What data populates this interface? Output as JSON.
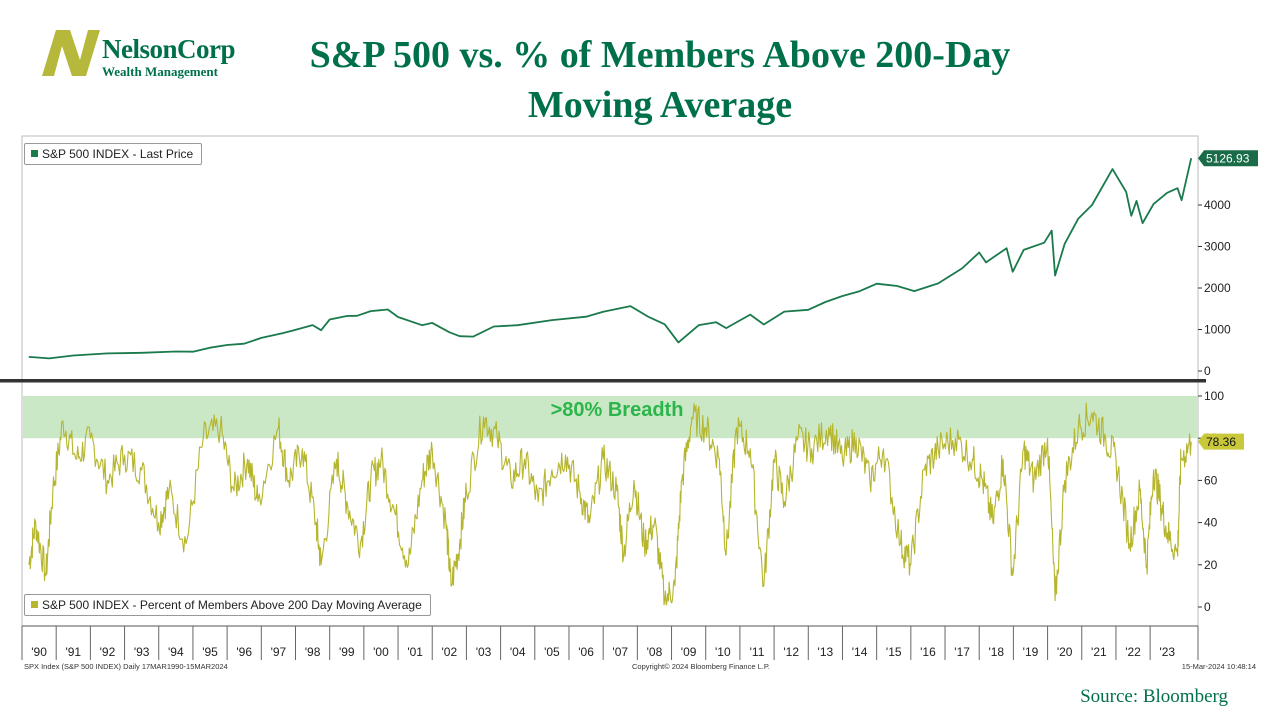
{
  "logo": {
    "name": "NelsonCorp",
    "tagline": "Wealth Management",
    "colors": {
      "mark": "#b5b83a",
      "text": "#00704a"
    }
  },
  "title": "S&P 500 vs. % of Members Above 200-Day Moving Average",
  "source": "Source: Bloomberg",
  "footer": {
    "left": "SPX Index (S&P 500 INDEX) Daily 17MAR1990-15MAR2024",
    "center": "Copyright© 2024 Bloomberg Finance L.P.",
    "right": "15-Mar-2024 10:48:14"
  },
  "chart_data": [
    {
      "type": "line",
      "series": [
        {
          "name": "S&P 500 INDEX - Last Price",
          "color": "#1a7a4c",
          "x": [
            1990.2,
            1990.8,
            1991.5,
            1992.5,
            1993.5,
            1994.5,
            1995.0,
            1995.5,
            1996.0,
            1996.5,
            1997.0,
            1997.6,
            1997.9,
            1998.5,
            1998.75,
            1999.0,
            1999.5,
            1999.8,
            2000.2,
            2000.7,
            2001.0,
            2001.7,
            2002.0,
            2002.5,
            2002.8,
            2003.2,
            2003.8,
            2004.5,
            2005.5,
            2006.5,
            2007.0,
            2007.8,
            2008.3,
            2008.8,
            2009.2,
            2009.8,
            2010.3,
            2010.6,
            2011.3,
            2011.7,
            2012.3,
            2013.0,
            2013.5,
            2014.0,
            2014.5,
            2015.0,
            2015.6,
            2016.1,
            2016.8,
            2017.5,
            2018.0,
            2018.2,
            2018.8,
            2018.98,
            2019.3,
            2019.9,
            2020.12,
            2020.22,
            2020.5,
            2020.9,
            2021.3,
            2021.9,
            2022.3,
            2022.45,
            2022.6,
            2022.78,
            2023.1,
            2023.5,
            2023.8,
            2023.92,
            2024.2
          ],
          "values": [
            340,
            300,
            380,
            415,
            450,
            460,
            470,
            560,
            620,
            670,
            780,
            930,
            950,
            1120,
            980,
            1230,
            1350,
            1300,
            1480,
            1450,
            1320,
            1100,
            1150,
            950,
            820,
            850,
            1050,
            1120,
            1220,
            1300,
            1450,
            1530,
            1350,
            1100,
            700,
            1100,
            1170,
            1050,
            1330,
            1150,
            1400,
            1500,
            1650,
            1800,
            1950,
            2060,
            2100,
            1880,
            2150,
            2450,
            2850,
            2650,
            2900,
            2450,
            2850,
            3150,
            3350,
            2300,
            3100,
            3600,
            4100,
            4750,
            4400,
            3700,
            4100,
            3600,
            3950,
            4400,
            4300,
            4200,
            5126.93
          ]
        }
      ],
      "ylim": [
        0,
        5400
      ],
      "yticks": [
        "0",
        "1000",
        "2000",
        "3000",
        "4000"
      ],
      "last_value": "5126.93"
    },
    {
      "type": "line",
      "series": [
        {
          "name": "S&P 500 INDEX - Percent of Members Above 200 Day Moving Average",
          "color": "#b5b52e",
          "x": [
            1990.2,
            1990.4,
            1990.7,
            1990.9,
            1991.2,
            1991.6,
            1992.0,
            1992.5,
            1993.0,
            1993.5,
            1994.0,
            1994.3,
            1994.8,
            1995.3,
            1995.8,
            1996.2,
            1996.6,
            1996.9,
            1997.5,
            1997.8,
            1998.2,
            1998.6,
            1998.75,
            1999.2,
            1999.5,
            1999.9,
            2000.2,
            2000.5,
            2000.9,
            2001.3,
            2001.7,
            2002.0,
            2002.4,
            2002.55,
            2002.8,
            2003.0,
            2003.5,
            2003.9,
            2004.3,
            2004.7,
            2005.1,
            2005.5,
            2005.9,
            2006.3,
            2006.6,
            2007.0,
            2007.4,
            2007.6,
            2007.9,
            2008.2,
            2008.5,
            2008.8,
            2009.1,
            2009.3,
            2009.6,
            2010.0,
            2010.4,
            2010.6,
            2010.9,
            2011.3,
            2011.7,
            2012.0,
            2012.3,
            2012.7,
            2013.1,
            2013.6,
            2014.0,
            2014.4,
            2014.8,
            2015.2,
            2015.7,
            2016.0,
            2016.4,
            2016.8,
            2017.3,
            2017.8,
            2018.1,
            2018.4,
            2018.7,
            2018.98,
            2019.3,
            2019.6,
            2020.0,
            2020.22,
            2020.5,
            2020.9,
            2021.3,
            2021.7,
            2022.0,
            2022.4,
            2022.7,
            2022.9,
            2023.1,
            2023.3,
            2023.5,
            2023.8,
            2023.9,
            2024.2
          ],
          "values": [
            20,
            40,
            15,
            55,
            88,
            70,
            80,
            60,
            72,
            65,
            40,
            55,
            30,
            80,
            85,
            55,
            70,
            50,
            85,
            60,
            75,
            40,
            20,
            70,
            50,
            30,
            60,
            70,
            45,
            20,
            60,
            75,
            40,
            10,
            30,
            55,
            90,
            80,
            60,
            70,
            50,
            65,
            72,
            55,
            40,
            70,
            55,
            25,
            60,
            30,
            40,
            3,
            10,
            60,
            90,
            85,
            70,
            25,
            85,
            75,
            10,
            70,
            50,
            80,
            75,
            85,
            70,
            80,
            60,
            75,
            30,
            20,
            65,
            75,
            80,
            70,
            60,
            40,
            70,
            15,
            75,
            60,
            80,
            3,
            60,
            85,
            92,
            80,
            70,
            30,
            55,
            20,
            65,
            50,
            35,
            25,
            70,
            78.36
          ]
        }
      ],
      "ylim": [
        -5,
        101
      ],
      "yticks": [
        "0",
        "20",
        "40",
        "60",
        "80",
        "100"
      ],
      "last_value": "78.36",
      "annotation": ">80% Breadth",
      "band": [
        80,
        100
      ]
    }
  ],
  "x_axis": {
    "range": [
      1990,
      2024.4
    ],
    "labels": [
      "'90",
      "'91",
      "'92",
      "'93",
      "'94",
      "'95",
      "'96",
      "'97",
      "'98",
      "'99",
      "'00",
      "'01",
      "'02",
      "'03",
      "'04",
      "'05",
      "'06",
      "'07",
      "'08",
      "'09",
      "'10",
      "'11",
      "'12",
      "'13",
      "'14",
      "'15",
      "'16",
      "'17",
      "'18",
      "'19",
      "'20",
      "'21",
      "'22",
      "'23"
    ]
  }
}
